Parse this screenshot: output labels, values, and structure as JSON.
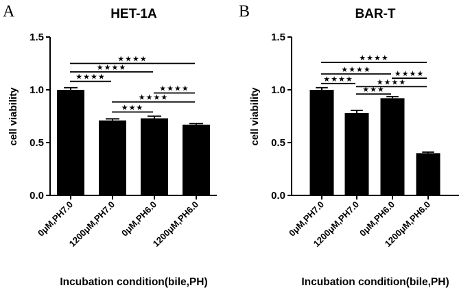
{
  "chart_data": [
    {
      "panel": "A",
      "type": "bar",
      "title": "HET-1A",
      "xlabel": "Incubation condition(bile,PH)",
      "ylabel": "cell viability",
      "ylim": [
        0,
        1.5
      ],
      "yticks": [
        "0.0",
        "0.5",
        "1.0",
        "1.5"
      ],
      "ytick_values": [
        0,
        0.5,
        1.0,
        1.5
      ],
      "categories": [
        "0μM,PH7.0",
        "1200μM,PH7.0",
        "0μM,PH6.0",
        "1200μM,PH6.0"
      ],
      "values": [
        1.0,
        0.71,
        0.73,
        0.67
      ],
      "errors": [
        0.02,
        0.015,
        0.02,
        0.01
      ],
      "bar_color": "#000000",
      "significance": [
        {
          "from": 0,
          "to": 3,
          "label": "****",
          "level": 1.25
        },
        {
          "from": 0,
          "to": 2,
          "label": "****",
          "level": 1.17
        },
        {
          "from": 0,
          "to": 1,
          "label": "****",
          "level": 1.08
        },
        {
          "from": 2,
          "to": 3,
          "label": "****",
          "level": 0.97
        },
        {
          "from": 1,
          "to": 3,
          "label": "****",
          "level": 0.885
        },
        {
          "from": 1,
          "to": 2,
          "label": "***",
          "level": 0.79
        }
      ]
    },
    {
      "panel": "B",
      "type": "bar",
      "title": "BAR-T",
      "xlabel": "Incubation condition(bile,PH)",
      "ylabel": "cell viability",
      "ylim": [
        0,
        1.5
      ],
      "yticks": [
        "0.0",
        "0.5",
        "1.0",
        "1.5"
      ],
      "ytick_values": [
        0,
        0.5,
        1.0,
        1.5
      ],
      "categories": [
        "0μM,PH7.0",
        "1200μM,PH7.0",
        "0μM,PH6.0",
        "1200μM,PH6.0"
      ],
      "values": [
        1.0,
        0.78,
        0.92,
        0.4
      ],
      "errors": [
        0.02,
        0.025,
        0.015,
        0.01
      ],
      "bar_color": "#000000",
      "significance": [
        {
          "from": 0,
          "to": 3,
          "label": "****",
          "level": 1.26
        },
        {
          "from": 0,
          "to": 2,
          "label": "****",
          "level": 1.15
        },
        {
          "from": 2,
          "to": 3,
          "label": "****",
          "level": 1.11
        },
        {
          "from": 0,
          "to": 1,
          "label": "****",
          "level": 1.06
        },
        {
          "from": 1,
          "to": 3,
          "label": "****",
          "level": 1.03
        },
        {
          "from": 1,
          "to": 2,
          "label": "***",
          "level": 0.96
        }
      ]
    }
  ]
}
